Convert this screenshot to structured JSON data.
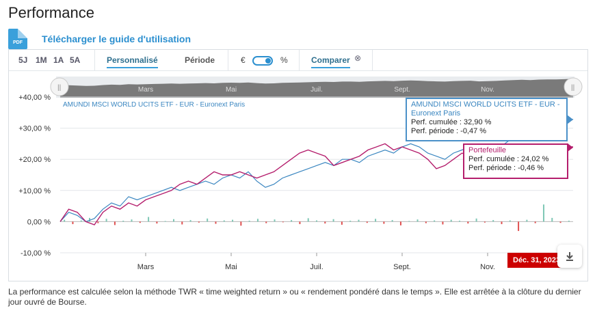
{
  "page": {
    "title": "Performance"
  },
  "guide": {
    "pdf_label": "PDF",
    "link_label": "Télécharger le guide d'utilisation"
  },
  "toolbar": {
    "periods": [
      "5J",
      "1M",
      "1A",
      "5A"
    ],
    "custom_label": "Personnalisé",
    "period_label": "Période",
    "currency_symbol": "€",
    "percent_symbol": "%",
    "compare_label": "Comparer"
  },
  "navigator": {
    "months": [
      "Mars",
      "Mai",
      "Juil.",
      "Sept.",
      "Nov."
    ]
  },
  "colors": {
    "etf": "#3a86c0",
    "portfolio": "#b41d6c",
    "bar_positive": "#7ec7b5",
    "bar_negative": "#e05050",
    "badge": "#cc0000"
  },
  "tooltips": {
    "etf": {
      "title": "AMUNDI MSCI WORLD UCITS ETF - EUR - Euronext Paris",
      "cumulative": "Perf. cumulée : 32,90 %",
      "period": "Perf. période : -0,47 %"
    },
    "portfolio": {
      "title": "Portefeuille",
      "cumulative": "Perf. cumulée : 24,02 %",
      "period": "Perf. période : -0,46 %"
    }
  },
  "date_badge": "Déc. 31, 2023",
  "icons": {
    "download": "download-icon",
    "pdf": "pdf-icon",
    "close": "close-circle-icon"
  },
  "footnote": "La performance est calculée selon la méthode TWR « time weighted return » ou « rendement pondéré dans le temps ». Elle est arrêtée à la clôture du dernier jour ouvré de Bourse.",
  "chart_data": {
    "type": "line",
    "title": "",
    "xlabel": "",
    "ylabel": "",
    "ylim": [
      -10,
      40
    ],
    "yticks": [
      "+40,00 %",
      "+30,00 %",
      "+20,00 %",
      "+10,00 %",
      "0,00 %",
      "-10,00 %"
    ],
    "ytick_values": [
      40,
      30,
      20,
      10,
      0,
      -10
    ],
    "xtick_labels": [
      "Mars",
      "Mai",
      "Juil.",
      "Sept.",
      "Nov."
    ],
    "xtick_months": [
      2,
      4,
      6,
      8,
      10
    ],
    "x_month_range": [
      0,
      12
    ],
    "series_label": "AMUNDI MSCI WORLD UCITS ETF - EUR - Euronext Paris",
    "grid": true,
    "series": [
      {
        "name": "AMUNDI MSCI WORLD UCITS ETF - EUR - Euronext Paris",
        "x": [
          0,
          0.2,
          0.4,
          0.6,
          0.8,
          1.0,
          1.2,
          1.4,
          1.6,
          1.8,
          2.0,
          2.2,
          2.4,
          2.6,
          2.8,
          3.0,
          3.2,
          3.4,
          3.6,
          3.8,
          4.0,
          4.2,
          4.4,
          4.6,
          4.8,
          5.0,
          5.2,
          5.4,
          5.6,
          5.8,
          6.0,
          6.2,
          6.4,
          6.6,
          6.8,
          7.0,
          7.2,
          7.4,
          7.6,
          7.8,
          8.0,
          8.2,
          8.4,
          8.6,
          8.8,
          9.0,
          9.2,
          9.4,
          9.6,
          9.8,
          10.0,
          10.2,
          10.4,
          10.6,
          10.8,
          11.0,
          11.2,
          11.4,
          11.6,
          11.8,
          12.0
        ],
        "values": [
          0,
          3,
          2,
          0,
          1,
          4,
          6,
          5,
          8,
          7,
          8,
          9,
          10,
          11,
          10,
          11,
          12,
          13,
          12,
          14,
          15,
          14,
          16,
          13,
          11,
          12,
          14,
          15,
          16,
          17,
          18,
          19,
          18,
          20,
          20,
          19,
          21,
          22,
          23,
          22,
          24,
          25,
          24,
          22,
          21,
          20,
          22,
          23,
          24,
          21,
          22,
          23,
          25,
          27,
          28,
          27,
          29,
          30,
          30,
          31,
          32.9
        ]
      },
      {
        "name": "Portefeuille",
        "x": [
          0,
          0.2,
          0.4,
          0.6,
          0.8,
          1.0,
          1.2,
          1.4,
          1.6,
          1.8,
          2.0,
          2.2,
          2.4,
          2.6,
          2.8,
          3.0,
          3.2,
          3.4,
          3.6,
          3.8,
          4.0,
          4.2,
          4.4,
          4.6,
          4.8,
          5.0,
          5.2,
          5.4,
          5.6,
          5.8,
          6.0,
          6.2,
          6.4,
          6.6,
          6.8,
          7.0,
          7.2,
          7.4,
          7.6,
          7.8,
          8.0,
          8.2,
          8.4,
          8.6,
          8.8,
          9.0,
          9.2,
          9.4,
          9.6,
          9.8,
          10.0,
          10.2,
          10.4,
          10.6,
          10.8,
          11.0,
          11.2,
          11.4,
          11.6,
          11.8,
          12.0
        ],
        "values": [
          0,
          4,
          3,
          0,
          -1,
          3,
          5,
          4,
          6,
          5,
          7,
          8,
          9,
          10,
          12,
          13,
          12,
          14,
          16,
          15,
          15,
          16,
          15,
          14,
          15,
          16,
          18,
          20,
          22,
          23,
          22,
          21,
          18,
          19,
          20,
          21,
          23,
          24,
          25,
          23,
          24,
          23,
          22,
          20,
          17,
          18,
          20,
          22,
          21,
          19,
          20,
          21,
          22,
          23,
          23,
          22,
          22,
          23,
          23,
          24,
          24.02
        ]
      }
    ],
    "daily_changes_pct": [
      0.6,
      -0.8,
      0.4,
      1.2,
      -0.5,
      0.9,
      -1.1,
      0.3,
      0.7,
      -0.4,
      1.5,
      -0.6,
      0.2,
      0.8,
      -0.9,
      0.5,
      -0.3,
      1.0,
      -0.7,
      0.4,
      0.6,
      -1.3,
      0.3,
      0.9,
      -0.5,
      0.7,
      -0.2,
      0.5,
      -0.8,
      1.1,
      0.4,
      -0.6,
      0.8,
      -1.0,
      0.3,
      0.6,
      -0.4,
      0.9,
      -0.7,
      0.5,
      -1.2,
      0.2,
      0.7,
      -0.5,
      0.4,
      -0.9,
      0.6,
      0.3,
      -0.6,
      1.0,
      -0.3,
      0.5,
      -0.8,
      0.4,
      -3.0,
      0.6,
      -0.5,
      5.5,
      1.2,
      -0.4,
      0.3
    ]
  }
}
